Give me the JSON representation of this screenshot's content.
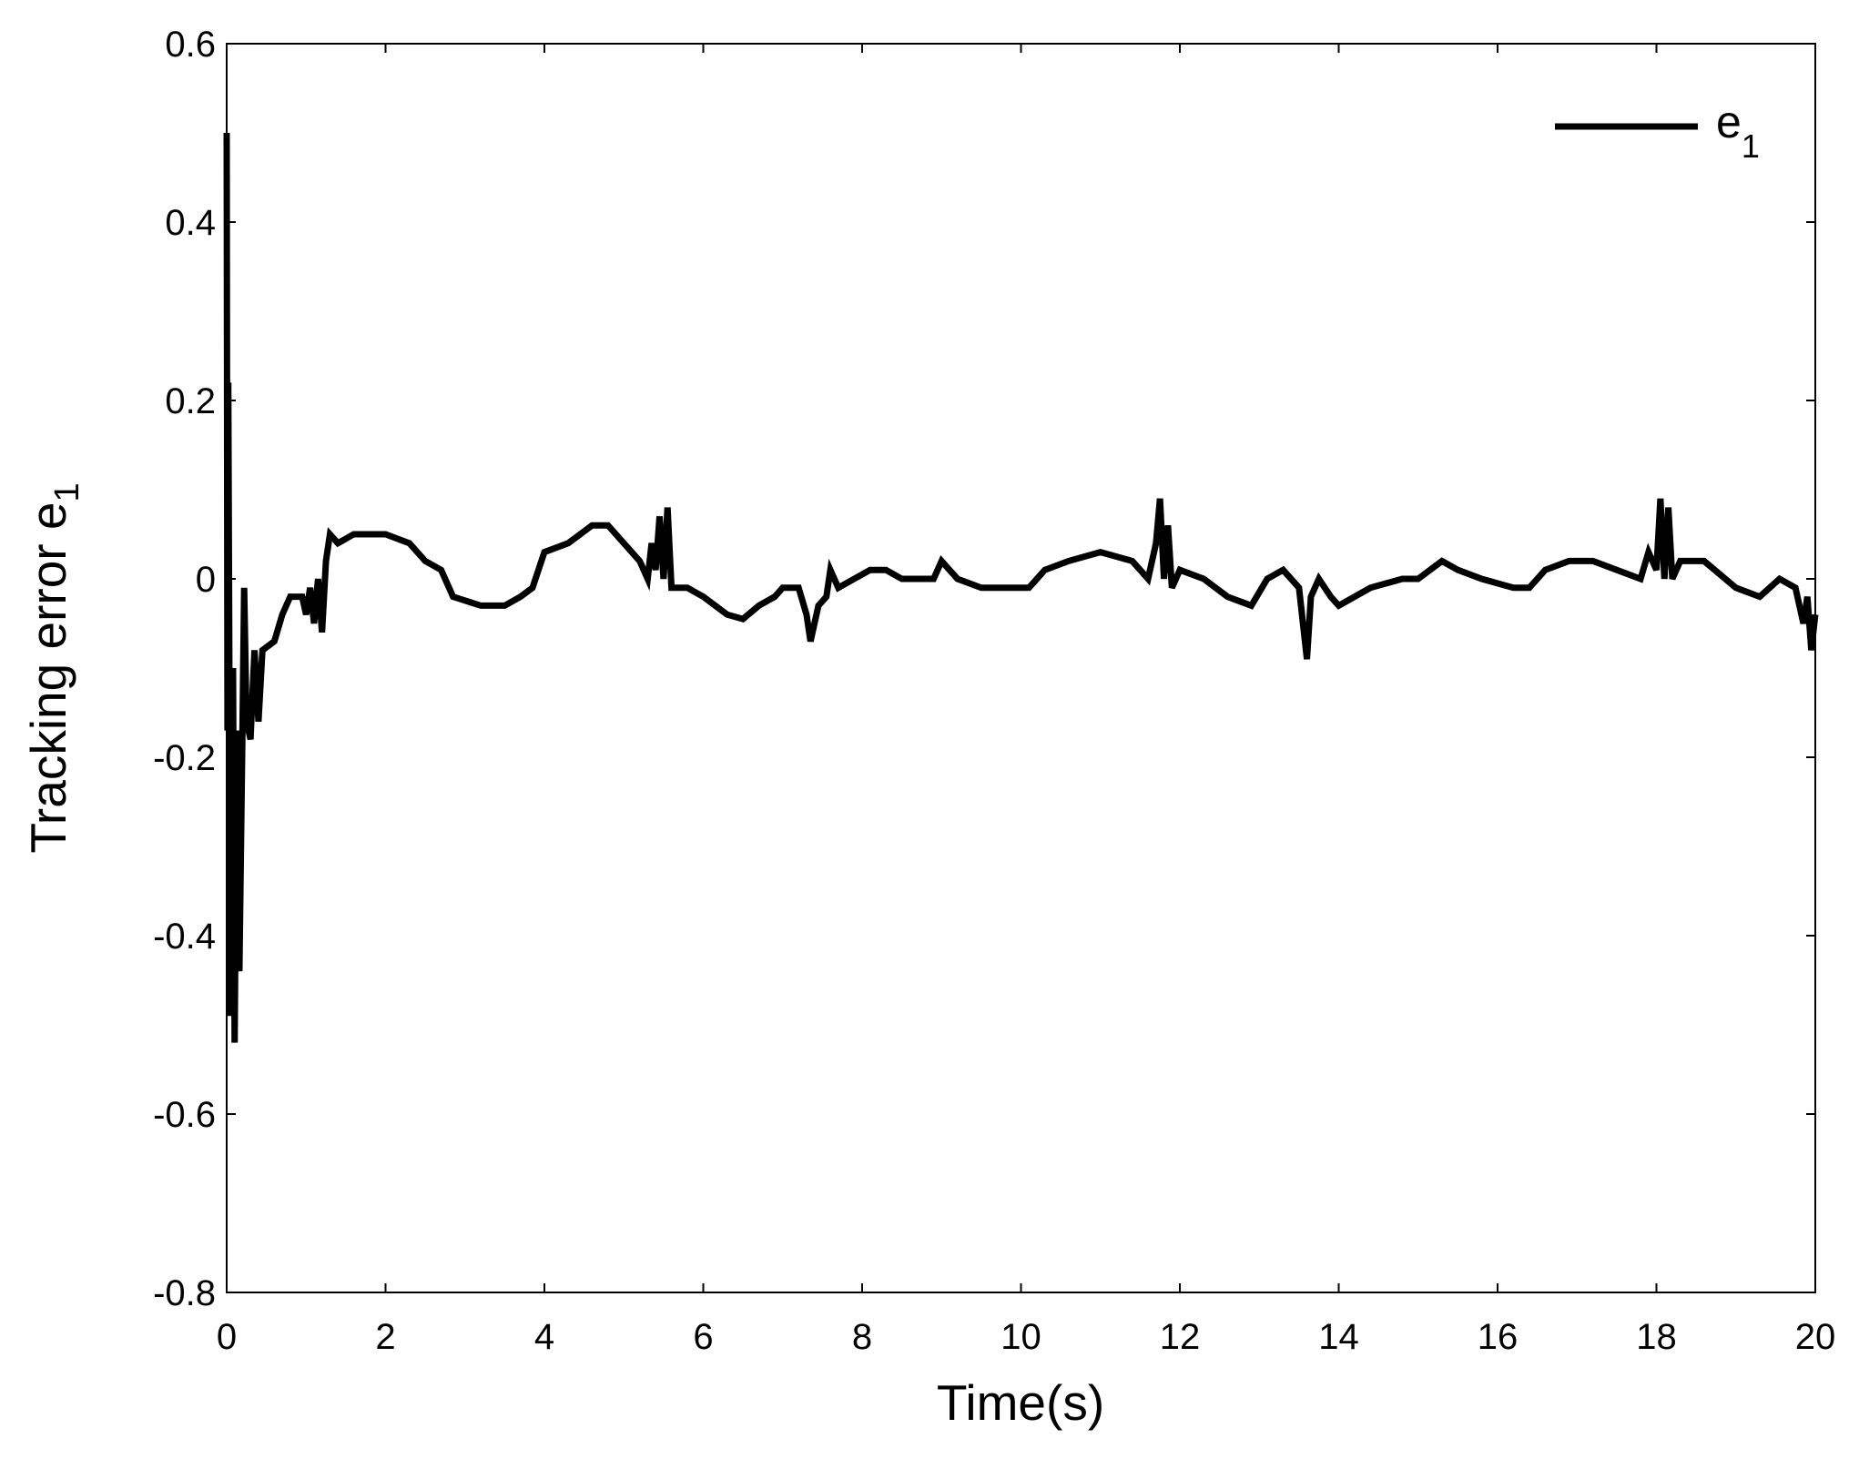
{
  "chart_data": {
    "type": "line",
    "x_label": "Time(s)",
    "y_label": "Tracking error e",
    "y_label_subscript": "1",
    "grid": false,
    "legend": "upper right",
    "xlim": [
      0,
      20
    ],
    "xticks": [
      0,
      2,
      4,
      6,
      8,
      10,
      12,
      14,
      16,
      18,
      20
    ],
    "ylim": [
      -0.8,
      0.6
    ],
    "yticks": [
      -0.8,
      -0.6,
      -0.4,
      -0.2,
      0,
      0.2,
      0.4,
      0.6
    ],
    "x": [
      0,
      0.01,
      0.02,
      0.05,
      0.08,
      0.1,
      0.13,
      0.16,
      0.2,
      0.22,
      0.25,
      0.3,
      0.35,
      0.4,
      0.45,
      0.6,
      0.7,
      0.8,
      0.95,
      1.0,
      1.05,
      1.1,
      1.15,
      1.2,
      1.25,
      1.3,
      1.4,
      1.6,
      2.0,
      2.3,
      2.5,
      2.7,
      2.85,
      3.2,
      3.5,
      3.7,
      3.85,
      4.0,
      4.3,
      4.6,
      4.8,
      5.0,
      5.2,
      5.3,
      5.35,
      5.4,
      5.45,
      5.5,
      5.55,
      5.6,
      5.8,
      6.0,
      6.3,
      6.5,
      6.7,
      6.9,
      7.0,
      7.2,
      7.3,
      7.35,
      7.45,
      7.55,
      7.6,
      7.7,
      7.9,
      8.1,
      8.3,
      8.5,
      8.9,
      9.0,
      9.2,
      9.5,
      9.9,
      10.1,
      10.3,
      10.6,
      11.0,
      11.4,
      11.6,
      11.7,
      11.75,
      11.8,
      11.85,
      11.9,
      12.0,
      12.3,
      12.6,
      12.9,
      13.1,
      13.3,
      13.5,
      13.6,
      13.65,
      13.75,
      13.9,
      14.0,
      14.4,
      14.8,
      15.0,
      15.3,
      15.5,
      15.8,
      16.2,
      16.4,
      16.6,
      16.9,
      17.2,
      17.5,
      17.8,
      17.9,
      18.0,
      18.05,
      18.1,
      18.15,
      18.2,
      18.3,
      18.6,
      19.0,
      19.3,
      19.55,
      19.75,
      19.85,
      19.9,
      19.95,
      20.0
    ],
    "series": [
      {
        "name": "e",
        "name_subscript": "1",
        "color": "#000000",
        "values": [
          0.5,
          -0.17,
          0.22,
          -0.49,
          -0.1,
          -0.52,
          -0.17,
          -0.44,
          -0.16,
          -0.01,
          -0.16,
          -0.18,
          -0.08,
          -0.16,
          -0.08,
          -0.07,
          -0.04,
          -0.02,
          -0.02,
          -0.04,
          -0.01,
          -0.05,
          0,
          -0.06,
          0.02,
          0.05,
          0.04,
          0.05,
          0.05,
          0.04,
          0.02,
          0.01,
          -0.02,
          -0.03,
          -0.03,
          -0.02,
          -0.01,
          0.03,
          0.04,
          0.06,
          0.06,
          0.04,
          0.02,
          0,
          0.04,
          0.01,
          0.07,
          0,
          0.08,
          -0.01,
          -0.01,
          -0.02,
          -0.04,
          -0.045,
          -0.03,
          -0.02,
          -0.01,
          -0.01,
          -0.04,
          -0.07,
          -0.03,
          -0.02,
          0.01,
          -0.01,
          0,
          0.01,
          0.01,
          0,
          0,
          0.02,
          0,
          -0.01,
          -0.01,
          -0.01,
          0.01,
          0.02,
          0.03,
          0.02,
          0,
          0.04,
          0.09,
          0,
          0.06,
          -0.01,
          0.01,
          0,
          -0.02,
          -0.03,
          0,
          0.01,
          -0.01,
          -0.09,
          -0.02,
          0,
          -0.02,
          -0.03,
          -0.01,
          0,
          0,
          0.02,
          0.01,
          0,
          -0.01,
          -0.01,
          0.01,
          0.02,
          0.02,
          0.01,
          0,
          0.03,
          0.01,
          0.09,
          0,
          0.08,
          0,
          0.02,
          0.02,
          -0.01,
          -0.02,
          0,
          -0.01,
          -0.05,
          -0.02,
          -0.08,
          -0.04
        ]
      }
    ]
  }
}
